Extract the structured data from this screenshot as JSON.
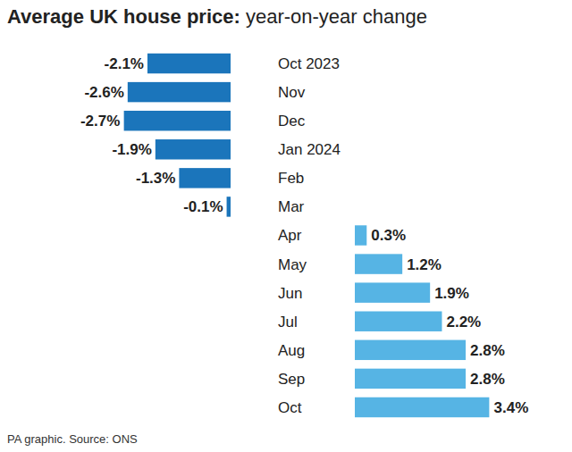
{
  "chart_data": {
    "type": "bar",
    "orientation": "horizontal",
    "title": "Average UK house price: year-on-year change",
    "source": "PA graphic. Source: ONS",
    "categories": [
      "Oct 2023",
      "Nov",
      "Dec",
      "Jan 2024",
      "Feb",
      "Mar",
      "Apr",
      "May",
      "Jun",
      "Jul",
      "Aug",
      "Sep",
      "Oct"
    ],
    "values": [
      -2.1,
      -2.6,
      -2.7,
      -1.9,
      -1.3,
      -0.1,
      0.3,
      1.2,
      1.9,
      2.2,
      2.8,
      2.8,
      3.4
    ],
    "value_labels": [
      "-2.1%",
      "-2.6%",
      "-2.7%",
      "-1.9%",
      "-1.3%",
      "-0.1%",
      "0.3%",
      "1.2%",
      "1.9%",
      "2.2%",
      "2.8%",
      "2.8%",
      "3.4%"
    ],
    "colors": [
      "#1b75bb",
      "#1b75bb",
      "#1b75bb",
      "#1b75bb",
      "#1b75bb",
      "#1b75bb",
      "#56b4e4",
      "#56b4e4",
      "#56b4e4",
      "#56b4e4",
      "#56b4e4",
      "#56b4e4",
      "#56b4e4"
    ],
    "xlim": [
      -2.7,
      3.4
    ],
    "data_labels": true,
    "tick_labels": false,
    "grid": false
  }
}
